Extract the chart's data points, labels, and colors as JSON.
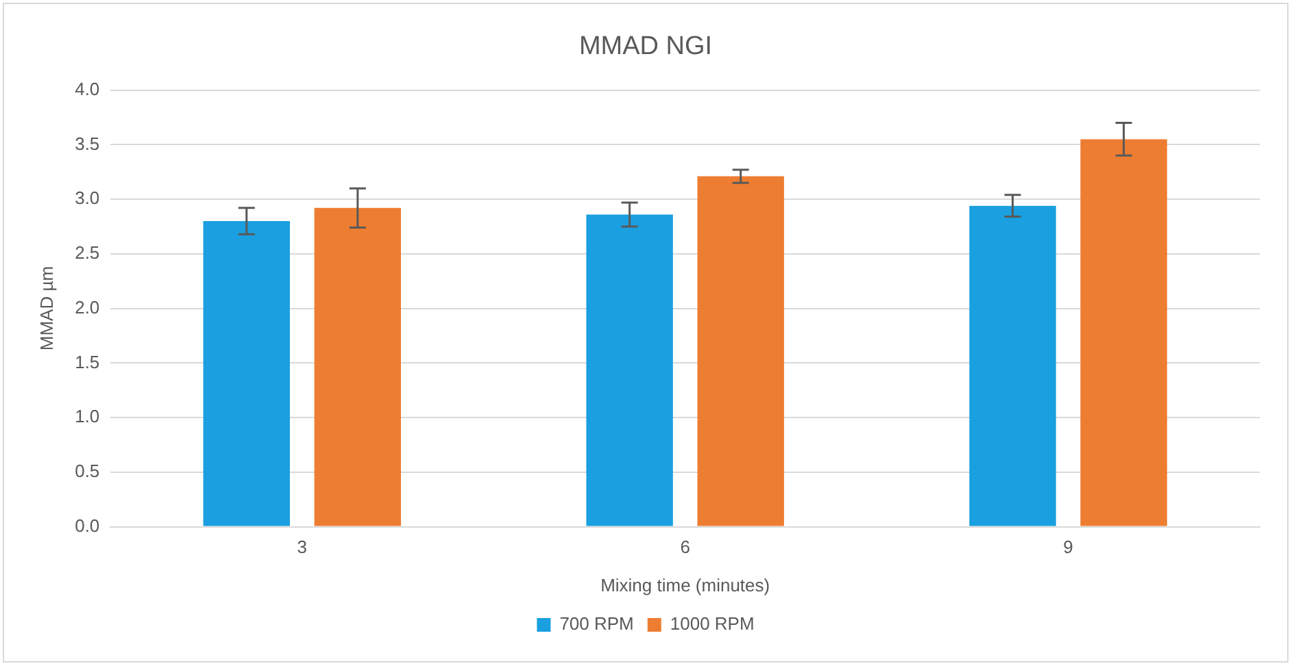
{
  "chart_data": {
    "type": "bar",
    "title": "MMAD NGI",
    "xlabel": "Mixing time (minutes)",
    "ylabel": "MMAD µm",
    "categories": [
      "3",
      "6",
      "9"
    ],
    "series": [
      {
        "name": "700 RPM",
        "color": "#1a9fe0",
        "values": [
          2.8,
          2.86,
          2.94
        ],
        "errors": [
          0.12,
          0.11,
          0.1
        ]
      },
      {
        "name": "1000 RPM",
        "color": "#ed7d31",
        "values": [
          2.92,
          3.21,
          3.55
        ],
        "errors": [
          0.18,
          0.06,
          0.15
        ]
      }
    ],
    "ylim": [
      0,
      4
    ],
    "yticks": [
      {
        "value": 0,
        "label": "0.0"
      },
      {
        "value": 0.5,
        "label": "0.5"
      },
      {
        "value": 1,
        "label": "1.0"
      },
      {
        "value": 1.5,
        "label": "1.5"
      },
      {
        "value": 2,
        "label": "2.0"
      },
      {
        "value": 2.5,
        "label": "2.5"
      },
      {
        "value": 3,
        "label": "3.0"
      },
      {
        "value": 3.5,
        "label": "3.5"
      },
      {
        "value": 4,
        "label": "4.0"
      }
    ],
    "grid": "y",
    "legend": "bottom"
  }
}
